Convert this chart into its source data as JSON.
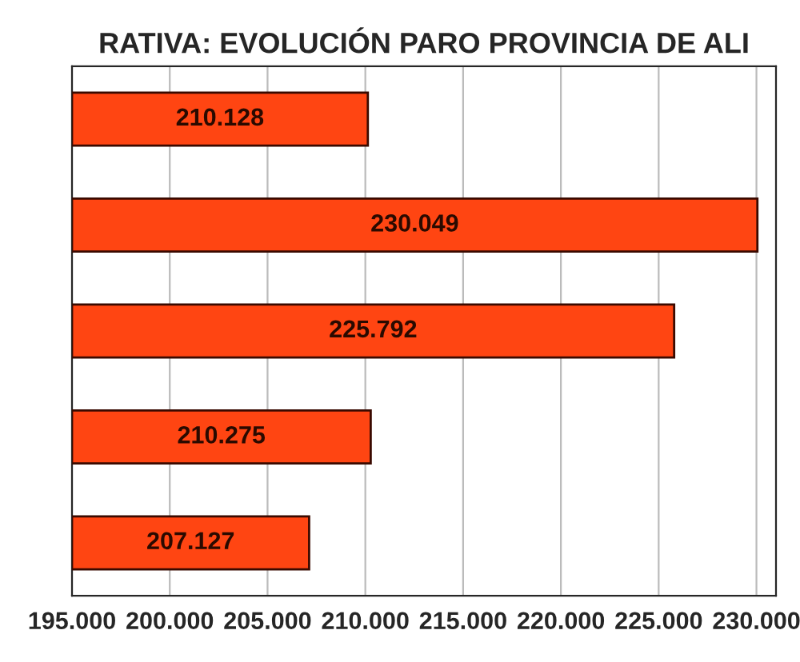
{
  "chart_data": {
    "type": "bar",
    "orientation": "horizontal",
    "title": "RATIVA: EVOLUCIÓN PARO PROVINCIA DE ALI",
    "categories": [
      null,
      null,
      null,
      null,
      null
    ],
    "values": [
      210128,
      230049,
      225792,
      210275,
      207127
    ],
    "value_labels": [
      "210.128",
      "230.049",
      "225.792",
      "210.275",
      "207.127"
    ],
    "color": "#ff4512",
    "xlim": [
      195000,
      231000
    ],
    "xticks": [
      {
        "value": 195000,
        "label": "195.000"
      },
      {
        "value": 200000,
        "label": "200.000"
      },
      {
        "value": 205000,
        "label": "205.000"
      },
      {
        "value": 210000,
        "label": "210.000"
      },
      {
        "value": 215000,
        "label": "215.000"
      },
      {
        "value": 220000,
        "label": "220.000"
      },
      {
        "value": 225000,
        "label": "225.000"
      },
      {
        "value": 230000,
        "label": "230.000"
      }
    ],
    "grid": "x",
    "tick_labels": "x"
  }
}
